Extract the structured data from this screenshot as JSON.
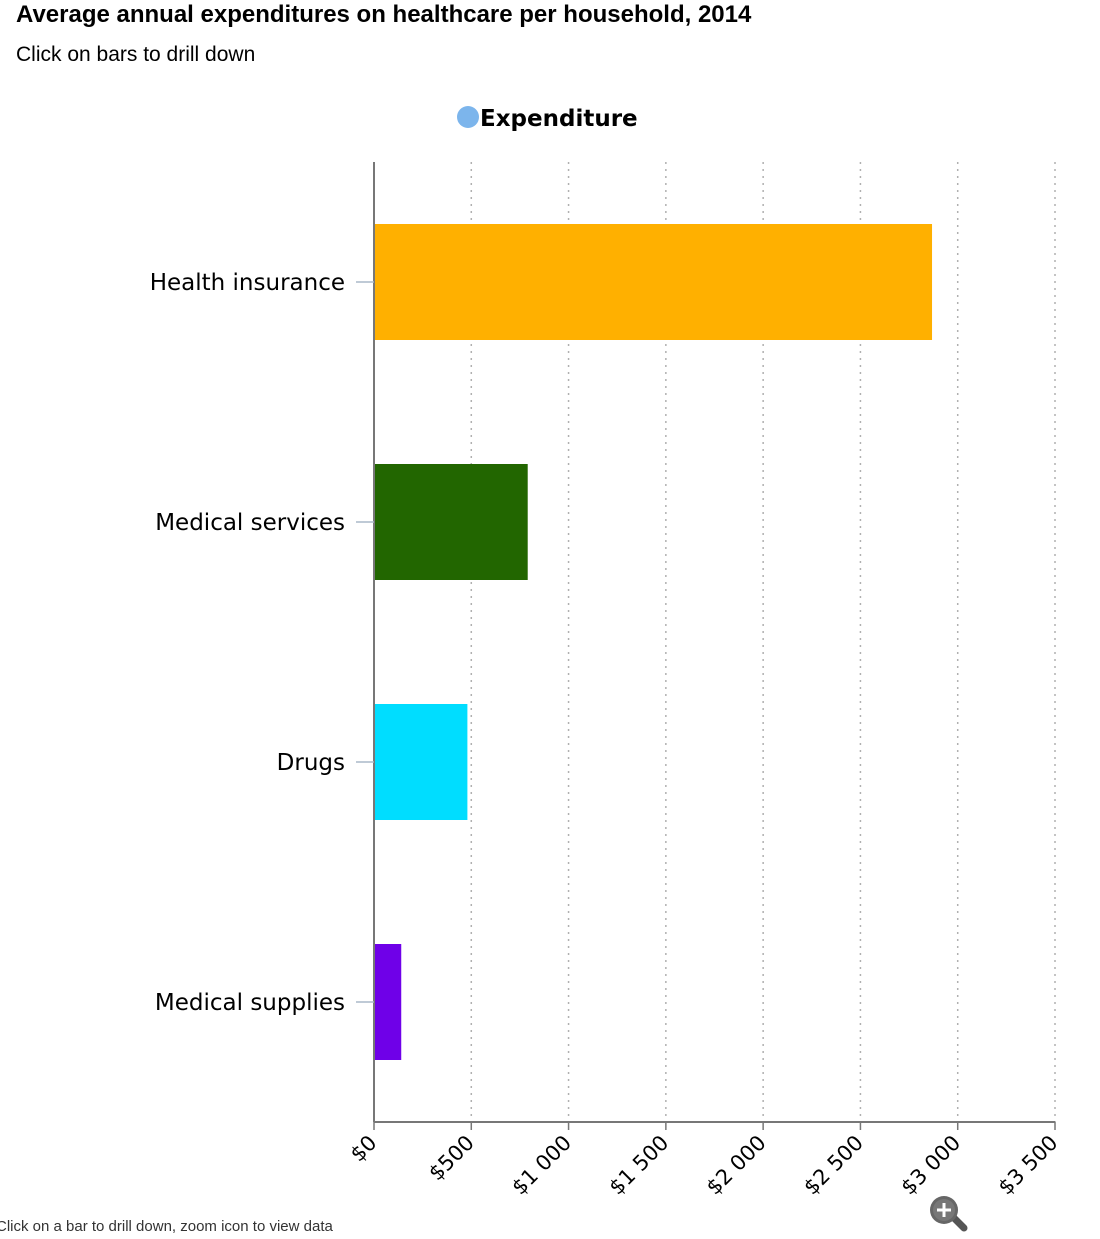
{
  "chart_data": {
    "type": "bar",
    "orientation": "horizontal",
    "title": "Average annual expenditures on healthcare per household, 2014",
    "subtitle": "Click on bars to drill down",
    "legend": {
      "position": "top-center",
      "items": [
        {
          "label": "Expenditure",
          "color": "#7cb5ec"
        }
      ]
    },
    "categories": [
      "Health insurance",
      "Medical services",
      "Drugs",
      "Medical supplies"
    ],
    "values": [
      2868,
      790,
      480,
      140
    ],
    "bar_colors": [
      "#ffb000",
      "#226600",
      "#00ddff",
      "#6f00e8"
    ],
    "xlim": [
      0,
      3500
    ],
    "x_ticks": [
      0,
      500,
      1000,
      1500,
      2000,
      2500,
      3000,
      3500
    ],
    "x_tick_labels": [
      "$0",
      "$500",
      "$1 000",
      "$1 500",
      "$2 000",
      "$2 500",
      "$3 000",
      "$3 500"
    ],
    "grid": "vertical-dotted",
    "xlabel": "",
    "ylabel": ""
  },
  "footnote": "Click on a bar to drill down, zoom icon to view data",
  "zoom_icon": "zoom-in-icon"
}
